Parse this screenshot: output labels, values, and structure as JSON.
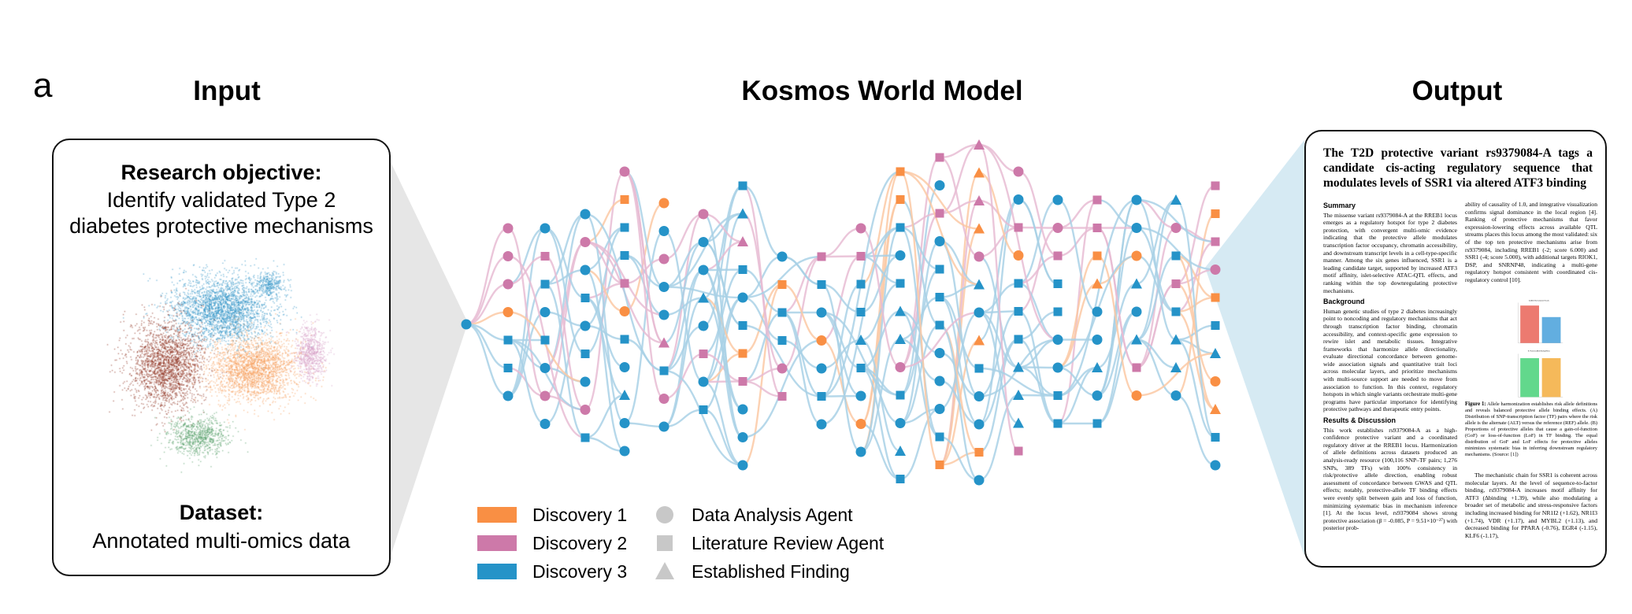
{
  "panel_label": "a",
  "headings": {
    "input": "Input",
    "model": "Kosmos World Model",
    "output": "Output"
  },
  "input_card": {
    "objective_title": "Research objective:",
    "objective_line1": "Identify validated Type 2",
    "objective_line2": "diabetes protective mechanisms",
    "dataset_title": "Dataset:",
    "dataset_body": "Annotated multi-omics data"
  },
  "umap_colors": {
    "cluster_blue": "#2a8fc4",
    "cluster_red": "#8b2a17",
    "cluster_orange": "#f59a55",
    "cluster_pink": "#d69cc4",
    "cluster_green": "#4e9a62"
  },
  "legend": {
    "discoveries": [
      {
        "label": "Discovery 1",
        "color": "#f98f44"
      },
      {
        "label": "Discovery 2",
        "color": "#cd79a9"
      },
      {
        "label": "Discovery 3",
        "color": "#2593c8"
      }
    ],
    "agents": [
      {
        "label": "Data Analysis Agent",
        "shape": "circle"
      },
      {
        "label": "Literature Review Agent",
        "shape": "square"
      },
      {
        "label": "Established Finding",
        "shape": "triangle"
      }
    ],
    "shape_color": "#c8c8c8"
  },
  "paper": {
    "title": "The T2D protective variant rs9379084-A tags a candidate cis-acting regulatory sequence that modulates levels of SSR1 via altered ATF3 binding",
    "summary_heading": "Summary",
    "summary_text": "The missense variant rs9379084-A at the RREB1 locus emerges as a regulatory hotspot for type 2 diabetes protection, with convergent multi-omic evidence indicating that the protective allele modulates transcription factor occupancy, chromatin accessibility, and downstream transcript levels in a cell-type-specific manner. Among the six genes influenced, SSR1 is a leading candidate target, supported by increased ATF3 motif affinity, islet-selective ATAC-QTL effects, and ranking within the top downregulating protective mechanisms.",
    "background_heading": "Background",
    "background_text": "Human genetic studies of type 2 diabetes increasingly point to noncoding and regulatory mechanisms that act through transcription factor binding, chromatin accessibility, and context-specific gene expression to rewire islet and metabolic tissues. Integrative frameworks that harmonize allele directionality, evaluate directional concordance between genome-wide association signals and quantitative trait loci across molecular layers, and prioritize mechanisms with multi-source support are needed to move from association to function. In this context, regulatory hotspots in which single variants orchestrate multi-gene programs have particular importance for identifying protective pathways and therapeutic entry points.",
    "results_heading": "Results & Discussion",
    "results_text": "This work establishes rs9379084-A as a high-confidence protective variant and a coordinated regulatory driver at the RREB1 locus. Harmonization of allele definitions across datasets produced an analysis-ready resource (100,116 SNP–TF pairs; 1,276 SNPs, 389 TFs) with 100% consistency in risk/protective allele direction, enabling robust assessment of concordance between GWAS and QTL effects; notably, protective-allele TF binding effects were evenly split between gain and loss of function, minimizing systematic bias in mechanism inference [1]. At the locus level, rs9379084 shows strong protective association (β = -0.085, P = 9.51×10⁻²⁷) with posterior prob-",
    "right_col_text": "ability of causality of 1.0, and integrative visualization confirms signal dominance in the local region [4]. Ranking of protective mechanisms that favor expression-lowering effects across available QTL streams places this locus among the most validated: six of the top ten protective mechanisms arise from rs9379084, including RREB1 (-2; score 6.000) and SSR1 (-4; score 5.000), with additional targets RIOK1, DSP, and SNRNP48, indicating a multi-gene regulatory hotspot consistent with coordinated cis-regulatory control [10].",
    "fig_title_a": "A. Allele Harmonization Results",
    "fig_title_b": "B. Protective Allele Binding Effects",
    "fig_caption_label": "Figure 1:",
    "fig_caption_text": "Allele harmonization establishes risk allele definitions and reveals balanced protective allele binding effects. (A) Distribution of SNP-transcription factor (TF) pairs where the risk allele is the alternate (ALT) versus the reference (REF) allele. (B) Proportions of protective alleles that cause a gain-of-function (GoF) or loss-of-function (LoF) in TF binding. The equal distribution of GoF and LoF effects for protective alleles minimizes systematic bias in inferring downstream regulatory mechanisms. (Source: [1])",
    "right_col_text2": "The mechanistic chain for SSR1 is coherent across molecular layers. At the level of sequence-to-factor binding, rs9379084-A increases motif affinity for ATF3 (Δbinding +1.39), while also modulating a broader set of metabolic and stress-responsive factors including increased binding for NR1I2 (+1.62), NR1I3 (+1.74), VDR (+1.17), and MYBL2 (+1.13), and decreased binding for PPARA (-0.76), EGR4 (-1.15), KLF6 (-1.17),",
    "fig_bar_colors": [
      "#ec7a70",
      "#62aee0",
      "#62d88c",
      "#f5b95a"
    ]
  }
}
